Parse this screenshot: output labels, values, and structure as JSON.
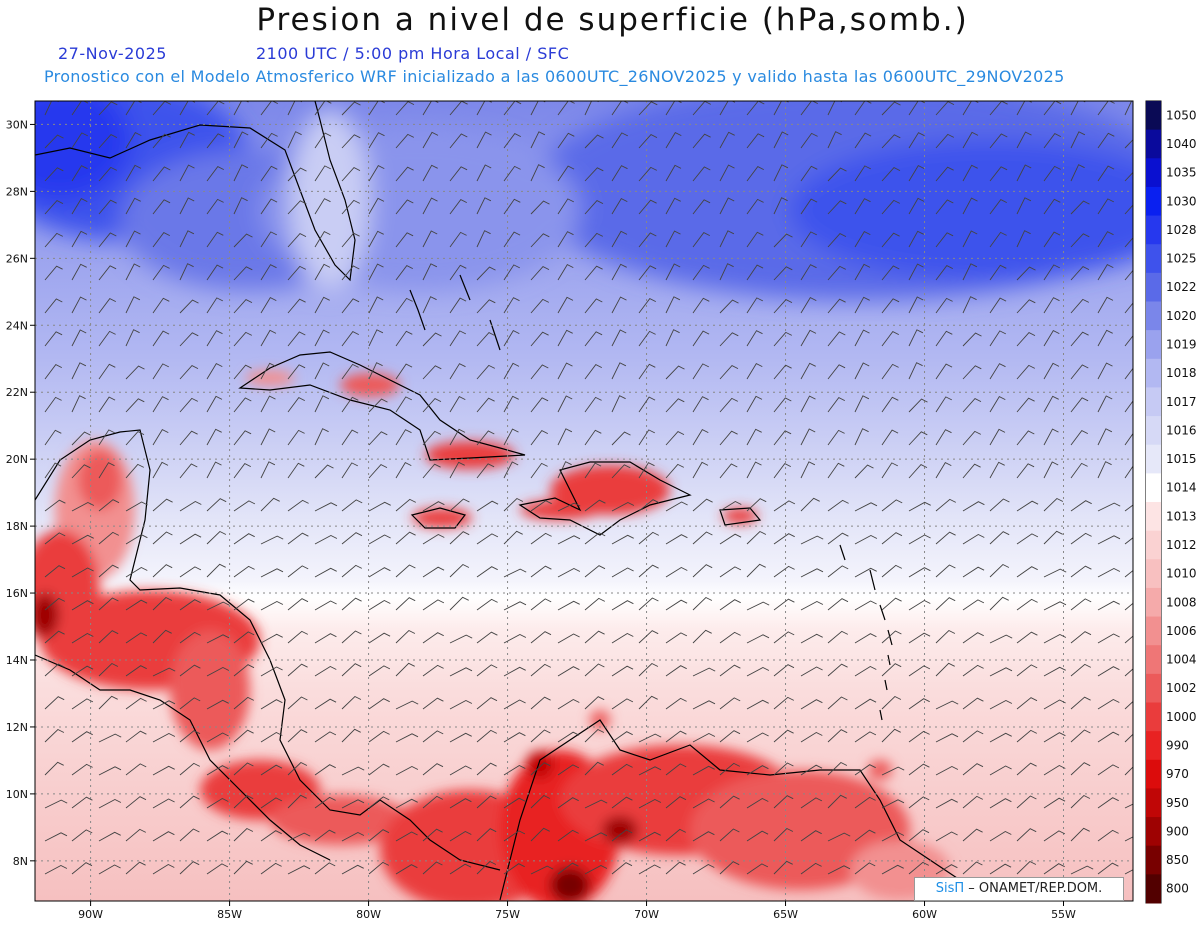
{
  "header": {
    "title": "Presion a nivel de superficie (hPa,somb.)",
    "date": "27-Nov-2025",
    "time_info": "2100 UTC / 5:00 pm Hora Local / SFC",
    "model_info": "Pronostico con el Modelo Atmosferico WRF inicializado a las 0600UTC_26NOV2025 y valido hasta las  0600UTC_29NOV2025"
  },
  "map": {
    "lon_ticks": [
      "90W",
      "85W",
      "80W",
      "75W",
      "70W",
      "65W",
      "60W",
      "55W"
    ],
    "lat_ticks": [
      "30N",
      "28N",
      "26N",
      "24N",
      "22N",
      "20N",
      "18N",
      "16N",
      "14N",
      "12N",
      "10N",
      "8N"
    ],
    "lon_range": [
      -92,
      -52.5
    ],
    "lat_range": [
      6.8,
      30.7
    ]
  },
  "colorbar": {
    "levels": [
      {
        "label": "1050",
        "color": "#0a0a55"
      },
      {
        "label": "1040",
        "color": "#0a0a9c"
      },
      {
        "label": "1035",
        "color": "#0a10d0"
      },
      {
        "label": "1030",
        "color": "#0a20f0"
      },
      {
        "label": "1028",
        "color": "#2638ee"
      },
      {
        "label": "1025",
        "color": "#3e52ec"
      },
      {
        "label": "1022",
        "color": "#5a6ae8"
      },
      {
        "label": "1020",
        "color": "#7a86ea"
      },
      {
        "label": "1019",
        "color": "#9aa2ee"
      },
      {
        "label": "1018",
        "color": "#b2b8f2"
      },
      {
        "label": "1017",
        "color": "#c6caf4"
      },
      {
        "label": "1016",
        "color": "#d6d9f6"
      },
      {
        "label": "1015",
        "color": "#e6e8f9"
      },
      {
        "label": "1014",
        "color": "#ffffff"
      },
      {
        "label": "1013",
        "color": "#fde4e4"
      },
      {
        "label": "1012",
        "color": "#fad2d2"
      },
      {
        "label": "1010",
        "color": "#f8c0c0"
      },
      {
        "label": "1008",
        "color": "#f5aaaa"
      },
      {
        "label": "1006",
        "color": "#f29090"
      },
      {
        "label": "1004",
        "color": "#ef7676"
      },
      {
        "label": "1002",
        "color": "#ec5a5a"
      },
      {
        "label": "1000",
        "color": "#ea3c3c"
      },
      {
        "label": "990",
        "color": "#e82222"
      },
      {
        "label": "970",
        "color": "#dc0c0c"
      },
      {
        "label": "950",
        "color": "#c00606"
      },
      {
        "label": "900",
        "color": "#9e0202"
      },
      {
        "label": "850",
        "color": "#780000"
      },
      {
        "label": "800",
        "color": "#520000"
      }
    ]
  },
  "credit": {
    "brand": "SisΠ",
    "text": "– ONAMET/REP.DOM."
  }
}
